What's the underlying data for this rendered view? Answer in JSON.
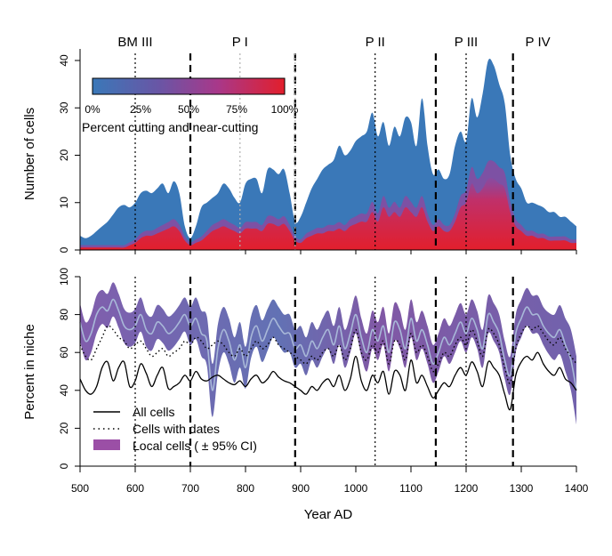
{
  "chart_data": [
    {
      "type": "area",
      "ylabel": "Number of cells",
      "ylim": [
        0,
        40
      ],
      "yticks": [
        0,
        10,
        20,
        30,
        40
      ],
      "xlim": [
        500,
        1400
      ],
      "periods": [
        {
          "label": "BM III",
          "x": 600
        },
        {
          "label": "P I",
          "x": 790
        },
        {
          "label": "P II",
          "x": 1035
        },
        {
          "label": "P III",
          "x": 1200
        },
        {
          "label": "P IV",
          "x": 1330
        }
      ],
      "color_legend": {
        "title": "Percent cutting and near-cutting",
        "ticks": [
          "0%",
          "25%",
          "50%",
          "75%",
          "100%"
        ],
        "colors": [
          "#3a78b8",
          "#7a4fa0",
          "#a8388a",
          "#e21f2c"
        ]
      },
      "series": [
        {
          "name": "total",
          "color": "#3a78b8",
          "x": [
            500,
            510,
            520,
            530,
            540,
            550,
            560,
            570,
            580,
            590,
            600,
            610,
            620,
            630,
            640,
            650,
            660,
            670,
            680,
            690,
            700,
            710,
            720,
            730,
            740,
            750,
            760,
            770,
            780,
            790,
            800,
            810,
            820,
            830,
            840,
            850,
            860,
            870,
            880,
            890,
            900,
            910,
            920,
            930,
            940,
            950,
            960,
            970,
            980,
            990,
            1000,
            1010,
            1020,
            1030,
            1040,
            1050,
            1060,
            1070,
            1080,
            1090,
            1100,
            1110,
            1120,
            1130,
            1140,
            1150,
            1160,
            1170,
            1180,
            1190,
            1200,
            1210,
            1220,
            1230,
            1240,
            1250,
            1260,
            1270,
            1280,
            1290,
            1300,
            1310,
            1320,
            1330,
            1340,
            1350,
            1360,
            1370,
            1380,
            1390,
            1400
          ],
          "values": [
            3,
            2.5,
            3,
            4,
            5,
            6,
            7.5,
            9,
            9.5,
            9,
            10,
            12,
            12.5,
            12,
            13,
            14,
            12,
            14.5,
            12,
            5,
            2.5,
            5,
            9,
            10,
            11,
            12,
            14,
            13,
            11,
            10,
            14,
            15,
            15,
            12,
            17,
            17,
            16,
            17,
            12,
            6,
            7,
            10,
            13,
            15,
            17,
            18,
            19,
            22,
            20,
            21,
            23,
            24,
            25,
            29,
            24,
            27,
            22,
            26,
            24,
            28,
            27,
            22,
            32,
            22,
            16,
            17,
            15,
            16,
            22,
            25,
            23,
            32,
            28,
            33,
            40,
            39,
            35,
            31,
            20,
            15,
            13,
            10,
            10,
            9.5,
            9,
            8,
            8,
            7,
            7,
            6,
            5
          ]
        },
        {
          "name": "cutting",
          "color": "#e21f2c",
          "x": [
            500,
            510,
            520,
            530,
            540,
            550,
            560,
            570,
            580,
            590,
            600,
            610,
            620,
            630,
            640,
            650,
            660,
            670,
            680,
            690,
            700,
            710,
            720,
            730,
            740,
            750,
            760,
            770,
            780,
            790,
            800,
            810,
            820,
            830,
            840,
            850,
            860,
            870,
            880,
            890,
            900,
            910,
            920,
            930,
            940,
            950,
            960,
            970,
            980,
            990,
            1000,
            1010,
            1020,
            1030,
            1040,
            1050,
            1060,
            1070,
            1080,
            1090,
            1100,
            1110,
            1120,
            1130,
            1140,
            1150,
            1160,
            1170,
            1180,
            1190,
            1200,
            1210,
            1220,
            1230,
            1240,
            1250,
            1260,
            1270,
            1280,
            1290,
            1300,
            1310,
            1320,
            1330,
            1340,
            1350,
            1360,
            1370,
            1380,
            1390,
            1400
          ],
          "values": [
            0.5,
            0.5,
            0.5,
            0.5,
            0.5,
            0.5,
            0.5,
            0.5,
            0.5,
            1,
            1.5,
            2.5,
            3,
            3,
            3.5,
            4,
            4.5,
            5,
            4,
            2,
            1,
            1.5,
            2,
            3,
            4,
            4.5,
            5,
            4.5,
            4,
            3.5,
            4.5,
            4.5,
            4.5,
            4,
            5.5,
            5.5,
            5,
            5.5,
            4,
            2,
            1.5,
            2.5,
            3,
            3.5,
            3.5,
            4,
            4,
            4.5,
            4,
            5,
            5.5,
            6,
            6,
            8,
            6,
            9,
            7,
            8,
            7,
            9,
            8,
            7,
            9,
            6,
            4,
            5,
            4,
            4,
            6,
            9,
            10,
            14,
            12,
            13,
            15,
            15,
            14,
            13,
            8,
            5,
            4,
            3,
            3,
            2.5,
            2.5,
            2,
            2,
            2,
            2,
            1.5,
            1.5
          ]
        }
      ]
    },
    {
      "type": "line",
      "xlabel": "Year AD",
      "ylabel": "Percent in niche",
      "xlim": [
        500,
        1400
      ],
      "ylim": [
        0,
        100
      ],
      "xticks": [
        500,
        600,
        700,
        800,
        900,
        1000,
        1100,
        1200,
        1300,
        1400
      ],
      "yticks": [
        0,
        20,
        40,
        60,
        80,
        100
      ],
      "legend": {
        "position": "bottom-left",
        "items": [
          "All cells",
          "Cells with dates",
          "Local cells ( ± 95% CI)"
        ]
      },
      "x": [
        500,
        510,
        520,
        530,
        540,
        550,
        560,
        570,
        580,
        590,
        600,
        610,
        620,
        630,
        640,
        650,
        660,
        670,
        680,
        690,
        700,
        710,
        720,
        730,
        740,
        750,
        760,
        770,
        780,
        790,
        800,
        810,
        820,
        830,
        840,
        850,
        860,
        870,
        880,
        890,
        900,
        910,
        920,
        930,
        940,
        950,
        960,
        970,
        980,
        990,
        1000,
        1010,
        1020,
        1030,
        1040,
        1050,
        1060,
        1070,
        1080,
        1090,
        1100,
        1110,
        1120,
        1130,
        1140,
        1150,
        1160,
        1170,
        1180,
        1190,
        1200,
        1210,
        1220,
        1230,
        1240,
        1250,
        1260,
        1270,
        1280,
        1290,
        1300,
        1310,
        1320,
        1330,
        1340,
        1350,
        1360,
        1370,
        1380,
        1390,
        1400
      ],
      "series": [
        {
          "name": "All cells",
          "color": "#000000",
          "values": [
            46,
            40,
            38,
            42,
            52,
            55,
            45,
            52,
            55,
            42,
            45,
            54,
            49,
            42,
            48,
            52,
            41,
            42,
            44,
            48,
            45,
            50,
            46,
            45,
            47,
            48,
            46,
            44,
            43,
            45,
            42,
            46,
            48,
            44,
            46,
            50,
            47,
            45,
            44,
            42,
            40,
            38,
            42,
            40,
            44,
            46,
            42,
            48,
            40,
            46,
            58,
            45,
            40,
            48,
            44,
            50,
            38,
            50,
            48,
            40,
            56,
            44,
            48,
            42,
            36,
            40,
            44,
            42,
            48,
            52,
            48,
            55,
            50,
            42,
            55,
            52,
            48,
            38,
            30,
            48,
            55,
            58,
            56,
            60,
            54,
            50,
            48,
            52,
            46,
            44,
            40
          ]
        },
        {
          "name": "Cells with dates",
          "color": "#000000",
          "values": [
            64,
            58,
            56,
            62,
            68,
            74,
            72,
            68,
            66,
            62,
            64,
            66,
            62,
            58,
            60,
            62,
            58,
            60,
            62,
            66,
            64,
            68,
            66,
            62,
            64,
            66,
            64,
            60,
            58,
            62,
            58,
            62,
            66,
            62,
            64,
            68,
            64,
            62,
            60,
            58,
            56,
            54,
            58,
            56,
            60,
            62,
            58,
            64,
            56,
            62,
            72,
            60,
            56,
            64,
            60,
            66,
            54,
            66,
            64,
            56,
            70,
            60,
            64,
            58,
            50,
            54,
            60,
            58,
            64,
            68,
            64,
            72,
            66,
            58,
            72,
            70,
            64,
            52,
            44,
            62,
            70,
            74,
            72,
            74,
            70,
            66,
            64,
            68,
            62,
            58,
            54
          ]
        },
        {
          "name": "Local cells",
          "color": "#a8b8d8",
          "values": [
            76,
            66,
            70,
            80,
            84,
            82,
            88,
            82,
            74,
            72,
            74,
            80,
            72,
            70,
            76,
            74,
            70,
            72,
            76,
            80,
            74,
            78,
            70,
            66,
            40,
            62,
            72,
            66,
            56,
            64,
            52,
            68,
            74,
            66,
            72,
            78,
            74,
            70,
            70,
            62,
            64,
            58,
            66,
            62,
            68,
            72,
            64,
            74,
            62,
            70,
            80,
            68,
            60,
            72,
            66,
            74,
            60,
            76,
            72,
            62,
            78,
            66,
            72,
            64,
            54,
            60,
            68,
            64,
            70,
            76,
            70,
            78,
            72,
            62,
            80,
            76,
            70,
            56,
            48,
            70,
            78,
            84,
            80,
            80,
            74,
            70,
            68,
            72,
            64,
            56,
            40
          ]
        },
        {
          "name": "Local cells CI half-width",
          "color": "#8a4aa0",
          "values": [
            10,
            10,
            10,
            10,
            9,
            9,
            9,
            9,
            9,
            9,
            9,
            9,
            9,
            9,
            9,
            9,
            9,
            9,
            9,
            9,
            10,
            11,
            12,
            13,
            14,
            13,
            12,
            12,
            12,
            12,
            11,
            11,
            11,
            11,
            11,
            10,
            10,
            10,
            10,
            10,
            10,
            10,
            10,
            10,
            10,
            10,
            10,
            10,
            10,
            10,
            10,
            10,
            10,
            10,
            10,
            10,
            10,
            10,
            10,
            10,
            10,
            10,
            10,
            10,
            10,
            10,
            10,
            10,
            10,
            10,
            10,
            10,
            10,
            10,
            10,
            10,
            10,
            10,
            10,
            10,
            10,
            10,
            10,
            10,
            10,
            11,
            12,
            13,
            14,
            16,
            18
          ]
        }
      ]
    }
  ],
  "phase_boundaries": {
    "major": [
      700,
      890,
      1145,
      1285
    ],
    "minor": [
      600,
      1035,
      1200
    ],
    "faint": [
      790,
      890
    ]
  }
}
